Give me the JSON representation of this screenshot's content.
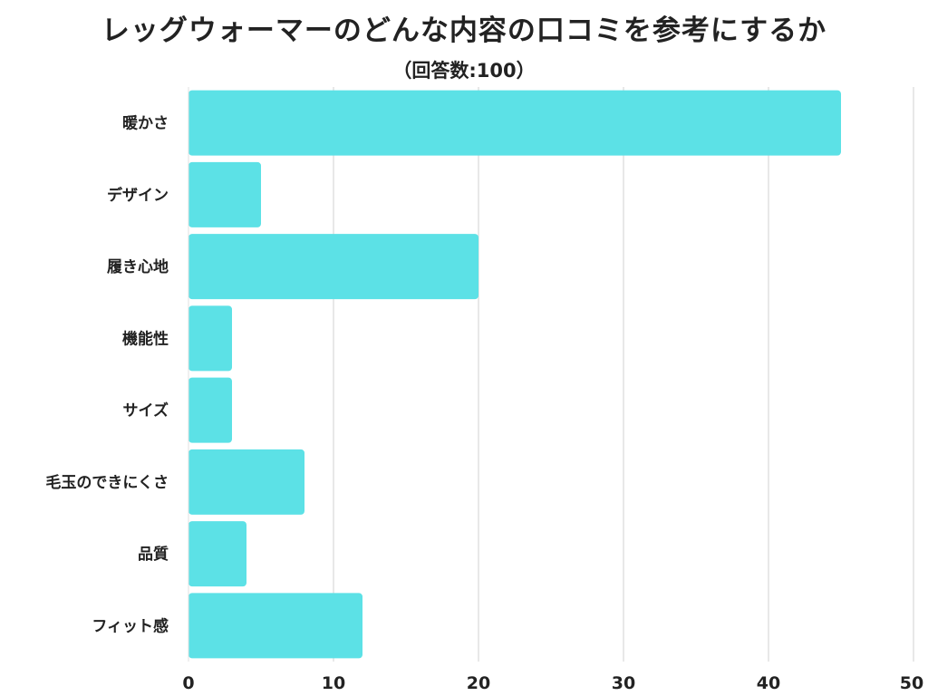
{
  "title": "レッグウォーマーのどんな内容の口コミを参考にするか",
  "subtitle": "（回答数:100）",
  "chart_data": {
    "type": "bar",
    "orientation": "horizontal",
    "title": "レッグウォーマーのどんな内容の口コミを参考にするか",
    "subtitle": "（回答数:100）",
    "categories": [
      "暖かさ",
      "デザイン",
      "履き心地",
      "機能性",
      "サイズ",
      "毛玉のできにくさ",
      "品質",
      "フィット感"
    ],
    "values": [
      45,
      5,
      20,
      3,
      3,
      8,
      4,
      12
    ],
    "xlim": [
      0,
      50
    ],
    "xticks": [
      0,
      10,
      20,
      30,
      40,
      50
    ],
    "xlabel": "",
    "ylabel": "",
    "grid": true,
    "bar_color": "#5ce1e6",
    "grid_color": "#d9d9d9"
  }
}
